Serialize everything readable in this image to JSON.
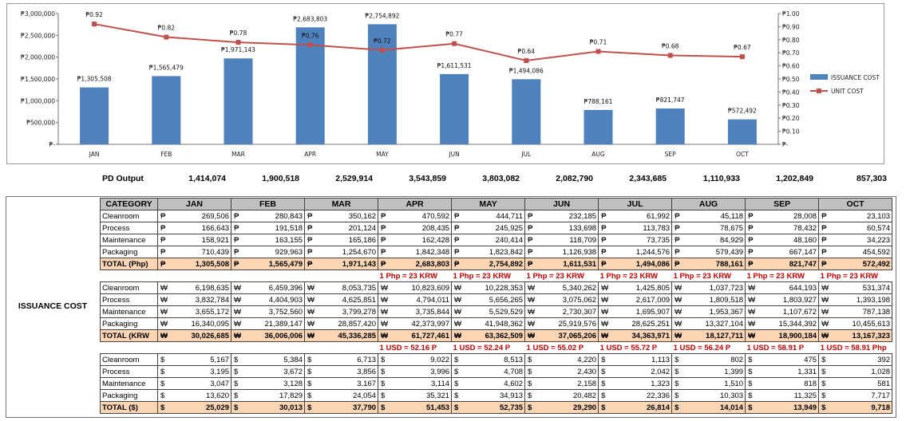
{
  "chart_data": {
    "type": "bar",
    "categories": [
      "JAN",
      "FEB",
      "MAR",
      "APR",
      "MAY",
      "JUN",
      "JUL",
      "AUG",
      "SEP",
      "OCT"
    ],
    "series": [
      {
        "name": "ISSUANCE COST",
        "kind": "bar",
        "axis": "left",
        "color": "#4f81bd",
        "values": [
          1305508,
          1565479,
          1971143,
          2683803,
          2754892,
          1611531,
          1494086,
          788161,
          821747,
          572492
        ],
        "labels": [
          "₱1,305,508",
          "₱1,565,479",
          "₱1,971,143",
          "₱2,683,803",
          "₱2,754,892",
          "₱1,611,531",
          "₱1,494,086",
          "₱788,161",
          "₱821,747",
          "₱572,492"
        ]
      },
      {
        "name": "UNIT COST",
        "kind": "line",
        "axis": "right",
        "color": "#c0504d",
        "values": [
          0.92,
          0.82,
          0.78,
          0.76,
          0.72,
          0.77,
          0.64,
          0.71,
          0.68,
          0.67
        ],
        "labels": [
          "₱0.92",
          "₱0.82",
          "₱0.78",
          "₱0.76",
          "₱0.72",
          "₱0.77",
          "₱0.64",
          "₱0.71",
          "₱0.68",
          "₱0.67"
        ]
      }
    ],
    "y_left": {
      "min": 0,
      "max": 3000000,
      "ticks": [
        "₱-",
        "₱500,000",
        "₱1,000,000",
        "₱1,500,000",
        "₱2,000,000",
        "₱2,500,000",
        "₱3,000,000"
      ]
    },
    "y_right": {
      "min": 0,
      "max": 1.0,
      "ticks": [
        "₱-",
        "₱0.10",
        "₱0.20",
        "₱0.30",
        "₱0.40",
        "₱0.50",
        "₱0.60",
        "₱0.70",
        "₱0.80",
        "₱0.90",
        "₱1.00"
      ]
    },
    "legend_position": "right",
    "grid": false
  },
  "pd_output": {
    "label": "PD Output",
    "values": [
      "1,414,074",
      "1,900,518",
      "2,529,914",
      "3,543,859",
      "3,803,082",
      "2,082,790",
      "2,343,685",
      "1,110,933",
      "1,202,849",
      "857,303"
    ]
  },
  "table": {
    "section_label": "ISSUANCE COST",
    "header_category": "CATEGORY",
    "months": [
      "JAN",
      "FEB",
      "MAR",
      "APR",
      "MAY",
      "JUN",
      "JUL",
      "AUG",
      "SEP",
      "OCT"
    ],
    "blocks": [
      {
        "currency": "₱",
        "rows": [
          {
            "category": "Cleanroom",
            "values": [
              "269,506",
              "280,843",
              "350,162",
              "470,592",
              "444,711",
              "232,185",
              "61,992",
              "45,118",
              "28,008",
              "23,103"
            ]
          },
          {
            "category": "Process",
            "values": [
              "166,643",
              "191,518",
              "201,124",
              "208,435",
              "245,925",
              "133,698",
              "113,783",
              "78,675",
              "78,432",
              "60,574"
            ]
          },
          {
            "category": "Maintenance",
            "values": [
              "158,921",
              "163,155",
              "165,186",
              "162,428",
              "240,414",
              "118,709",
              "73,735",
              "84,929",
              "48,160",
              "34,223"
            ]
          },
          {
            "category": "Packaging",
            "values": [
              "710,439",
              "929,963",
              "1,254,670",
              "1,842,348",
              "1,823,842",
              "1,126,938",
              "1,244,576",
              "579,439",
              "667,147",
              "454,592"
            ]
          }
        ],
        "total": {
          "category": "TOTAL (Php)",
          "values": [
            "1,305,508",
            "1,565,479",
            "1,971,143",
            "2,683,803",
            "2,754,892",
            "1,611,531",
            "1,494,086",
            "788,161",
            "821,747",
            "572,492"
          ]
        }
      },
      {
        "currency": "₩",
        "rates": [
          "",
          "",
          "",
          "1 Php = 23 KRW",
          "1 Php = 23 KRW",
          "1 Php = 23 KRW",
          "1 Php = 23 KRW",
          "1 Php = 23 KRW",
          "1 Php = 23 KRW",
          "1 Php = 23 KRW"
        ],
        "rows": [
          {
            "category": "Cleanroom",
            "values": [
              "6,198,635",
              "6,459,396",
              "8,053,735",
              "10,823,609",
              "10,228,353",
              "5,340,262",
              "1,425,805",
              "1,037,723",
              "644,193",
              "531,374"
            ]
          },
          {
            "category": "Process",
            "values": [
              "3,832,784",
              "4,404,903",
              "4,625,851",
              "4,794,011",
              "5,656,265",
              "3,075,062",
              "2,617,009",
              "1,809,518",
              "1,803,927",
              "1,393,198"
            ]
          },
          {
            "category": "Maintenance",
            "values": [
              "3,655,172",
              "3,752,560",
              "3,799,278",
              "3,735,844",
              "5,529,529",
              "2,730,307",
              "1,695,907",
              "1,953,367",
              "1,107,672",
              "787,138"
            ]
          },
          {
            "category": "Packaging",
            "values": [
              "16,340,095",
              "21,389,147",
              "28,857,420",
              "42,373,997",
              "41,948,362",
              "25,919,576",
              "28,625,251",
              "13,327,104",
              "15,344,392",
              "10,455,613"
            ]
          }
        ],
        "total": {
          "category": "TOTAL (KRW",
          "values": [
            "30,026,685",
            "36,006,006",
            "45,336,285",
            "61,727,461",
            "63,362,509",
            "37,065,206",
            "34,363,971",
            "18,127,711",
            "18,900,184",
            "13,167,323"
          ]
        }
      },
      {
        "currency": "$",
        "rates": [
          "",
          "",
          "",
          "1 USD = 52.16 P",
          "1 USD = 52.24 P",
          "1 USD = 55.02 P",
          "1 USD = 55.72 P",
          "1 USD = 56.24 P",
          "1 USD = 58.91 P",
          "1 USD = 58.91 Php"
        ],
        "rows": [
          {
            "category": "Cleanroom",
            "values": [
              "5,167",
              "5,384",
              "6,713",
              "9,022",
              "8,513",
              "4,220",
              "1,113",
              "802",
              "475",
              "392"
            ]
          },
          {
            "category": "Process",
            "values": [
              "3,195",
              "3,672",
              "3,856",
              "3,996",
              "4,708",
              "2,430",
              "2,042",
              "1,399",
              "1,331",
              "1,028"
            ]
          },
          {
            "category": "Maintenance",
            "values": [
              "3,047",
              "3,128",
              "3,167",
              "3,114",
              "4,602",
              "2,158",
              "1,323",
              "1,510",
              "818",
              "581"
            ]
          },
          {
            "category": "Packaging",
            "values": [
              "13,620",
              "17,829",
              "24,054",
              "35,321",
              "34,913",
              "20,482",
              "22,336",
              "10,303",
              "11,325",
              "7,717"
            ]
          }
        ],
        "total": {
          "category": "TOTAL ($)",
          "values": [
            "25,029",
            "30,013",
            "37,790",
            "51,453",
            "52,735",
            "29,290",
            "26,814",
            "14,014",
            "13,949",
            "9,718"
          ]
        }
      }
    ]
  }
}
